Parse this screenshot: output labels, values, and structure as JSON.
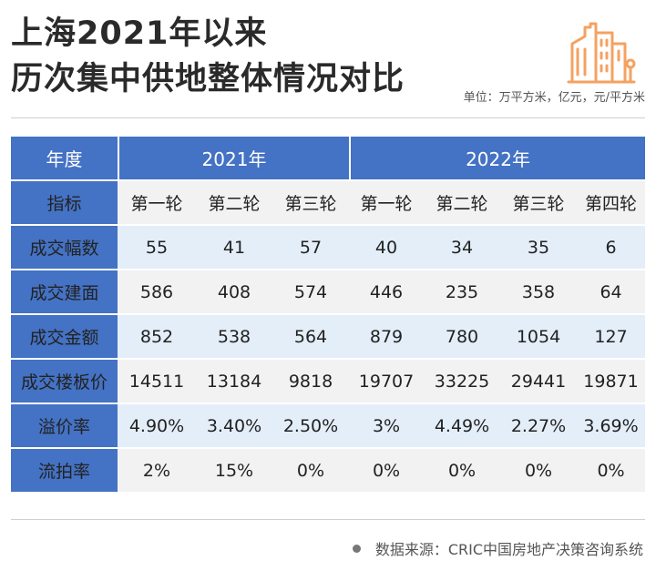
{
  "header": {
    "title_line1": "上海2021年以来",
    "title_line2": "历次集中供地整体情况对比",
    "unit": "单位：万平方米，亿元，元/平方米"
  },
  "table": {
    "year_label": "年度",
    "year_2021": "2021年",
    "year_2022": "2022年",
    "indicator_label": "指标",
    "rounds": [
      "第一轮",
      "第二轮",
      "第三轮",
      "第一轮",
      "第二轮",
      "第三轮",
      "第四轮"
    ],
    "rows": [
      {
        "label": "成交幅数",
        "values": [
          "55",
          "41",
          "57",
          "40",
          "34",
          "35",
          "6"
        ]
      },
      {
        "label": "成交建面",
        "values": [
          "586",
          "408",
          "574",
          "446",
          "235",
          "358",
          "64"
        ]
      },
      {
        "label": "成交金额",
        "values": [
          "852",
          "538",
          "564",
          "879",
          "780",
          "1054",
          "127"
        ]
      },
      {
        "label": "成交楼板价",
        "values": [
          "14511",
          "13184",
          "9818",
          "19707",
          "33225",
          "29441",
          "19871"
        ]
      },
      {
        "label": "溢价率",
        "values": [
          "4.90%",
          "3.40%",
          "2.50%",
          "3%",
          "4.49%",
          "2.27%",
          "3.69%"
        ]
      },
      {
        "label": "流拍率",
        "values": [
          "2%",
          "15%",
          "0%",
          "0%",
          "0%",
          "0%",
          "0%"
        ]
      }
    ]
  },
  "footer": {
    "source": "数据来源：CRIC中国房地产决策咨询系统"
  },
  "colors": {
    "header_blue": "#4472c4",
    "light_blue": "#e3eef9",
    "grey": "#f2f2f2",
    "logo_orange": "#f4a261"
  },
  "icons": {
    "logo": "buildings-icon"
  }
}
